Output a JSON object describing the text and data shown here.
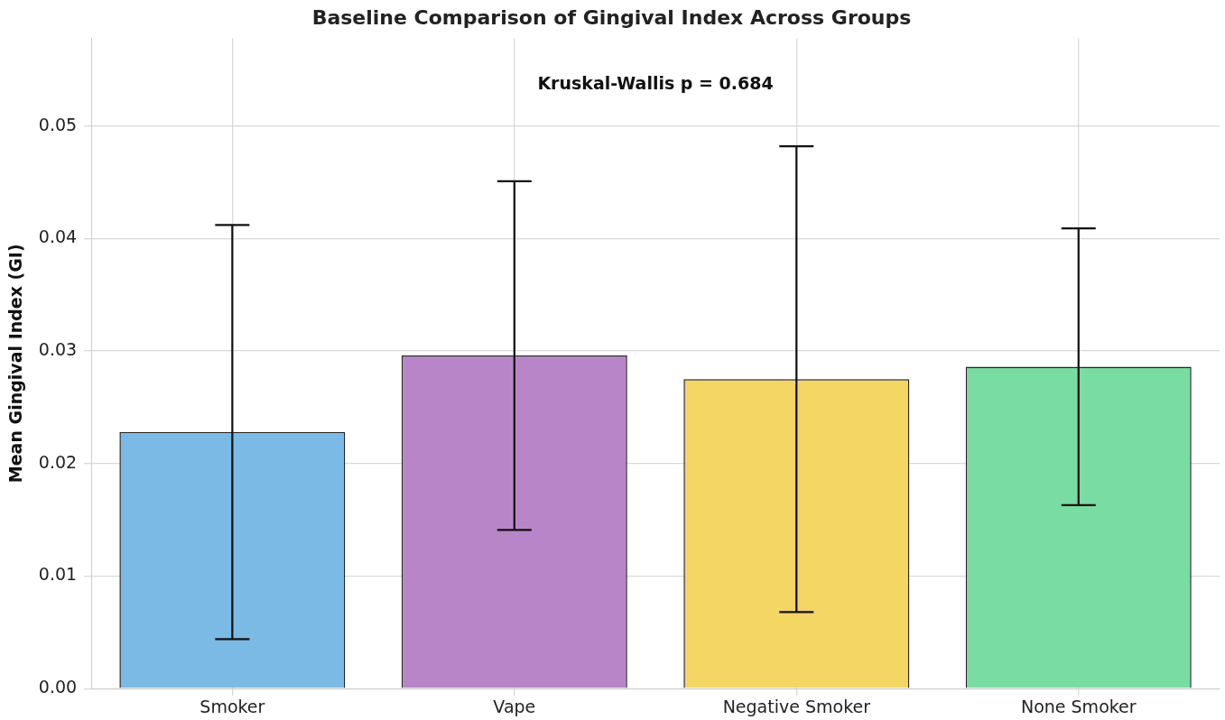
{
  "chart_data": {
    "type": "bar",
    "title": "Baseline Comparison of Gingival Index Across Groups",
    "ylabel": "Mean Gingival Index (GI)",
    "categories": [
      "Smoker",
      "Vape",
      "Negative Smoker",
      "None Smoker"
    ],
    "values": [
      0.0228,
      0.0296,
      0.0275,
      0.0286
    ],
    "errors": [
      0.0184,
      0.0155,
      0.0207,
      0.0123
    ],
    "colors": [
      "#7cbae6",
      "#b886c8",
      "#f3d664",
      "#79dca2"
    ],
    "ylim": [
      0,
      0.0578
    ],
    "yticks": [
      {
        "value": 0,
        "label": "0.00"
      },
      {
        "value": 0.01,
        "label": "0.01"
      },
      {
        "value": 0.02,
        "label": "0.02"
      },
      {
        "value": 0.03,
        "label": "0.03"
      },
      {
        "value": 0.04,
        "label": "0.04"
      },
      {
        "value": 0.05,
        "label": "0.05"
      }
    ],
    "annotations": [
      "Kruskal-Wallis p = 0.684"
    ],
    "grid": true,
    "legend": false
  }
}
